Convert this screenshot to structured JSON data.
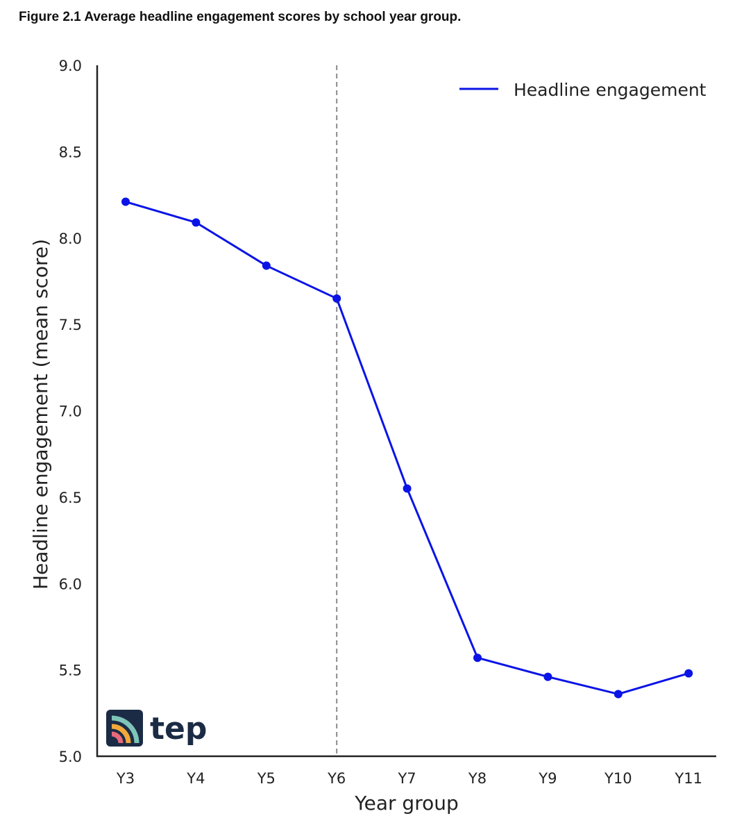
{
  "caption": "Figure 2.1 Average headline engagement scores by school year group.",
  "logo": {
    "text": "tep"
  },
  "colors": {
    "line": "#0a14e6",
    "axis": "#222222",
    "divider": "#8a8a8a",
    "logo_bg": "#1b2b45"
  },
  "chart_data": {
    "type": "line",
    "categories": [
      "Y3",
      "Y4",
      "Y5",
      "Y6",
      "Y7",
      "Y8",
      "Y9",
      "Y10",
      "Y11"
    ],
    "series": [
      {
        "name": "Headline engagement",
        "values": [
          8.21,
          8.09,
          7.84,
          7.65,
          6.55,
          5.57,
          5.46,
          5.36,
          5.48
        ]
      }
    ],
    "xlabel": "Year group",
    "ylabel": "Headline engagement (mean score)",
    "ylim": [
      5.0,
      9.0
    ],
    "yticks": [
      "5.0",
      "5.5",
      "6.0",
      "6.5",
      "7.0",
      "7.5",
      "8.0",
      "8.5",
      "9.0"
    ],
    "vertical_reference_line": {
      "category": "Y6",
      "style": "dashed"
    },
    "legend_position": "top-right",
    "grid": false
  }
}
